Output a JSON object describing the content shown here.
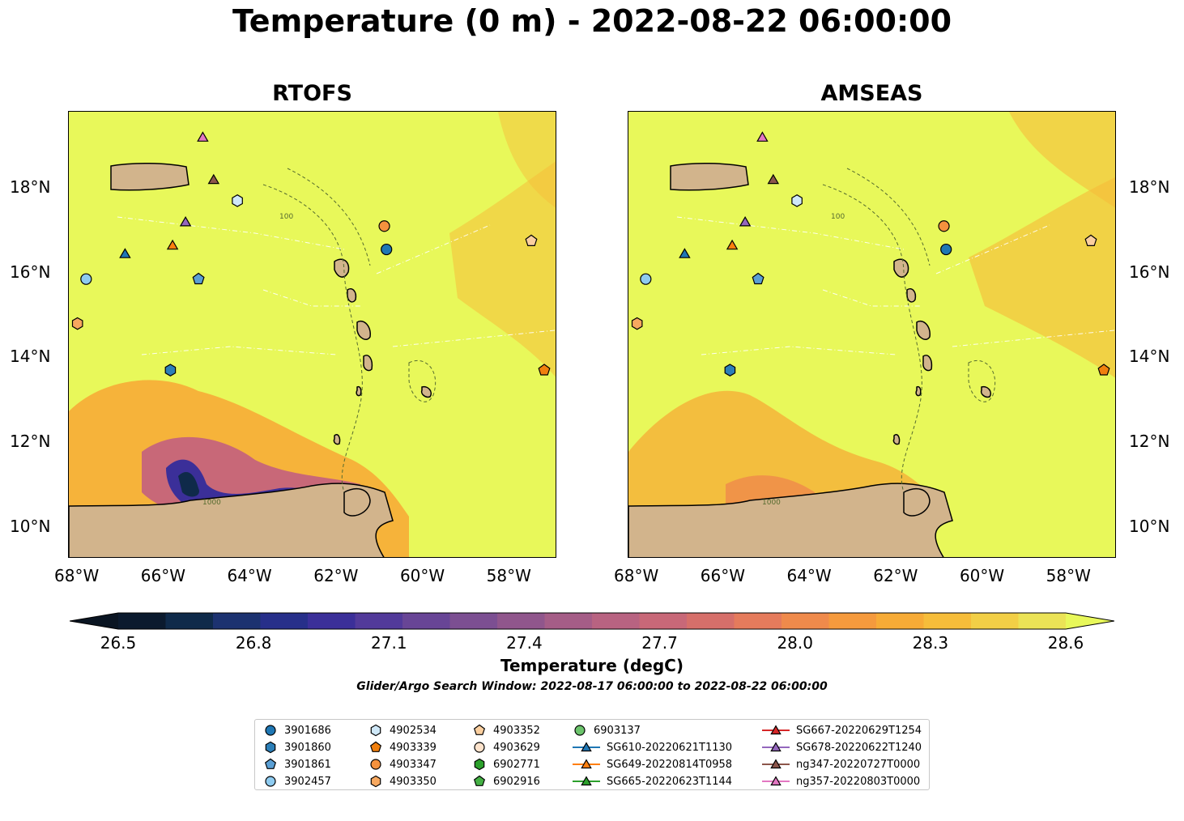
{
  "title": "Temperature (0 m) - 2022-08-22 06:00:00",
  "panels": [
    {
      "id": "rtofs",
      "title": "RTOFS"
    },
    {
      "id": "amseas",
      "title": "AMSEAS"
    }
  ],
  "axes": {
    "lon_ticks": [
      "68°W",
      "66°W",
      "64°W",
      "62°W",
      "60°W",
      "58°W"
    ],
    "lat_ticks": [
      "18°N",
      "16°N",
      "14°N",
      "12°N",
      "10°N"
    ],
    "lon_range": [
      -68.2,
      -56.9
    ],
    "lat_range": [
      9.25,
      19.8
    ]
  },
  "contour_labels": [
    "100",
    "1000"
  ],
  "colorbar": {
    "ticks": [
      "26.5",
      "26.8",
      "27.1",
      "27.4",
      "27.7",
      "28.0",
      "28.3",
      "28.6"
    ],
    "label": "Temperature (degC)",
    "colors": [
      "#0b1a2e",
      "#0f2a4a",
      "#1c3270",
      "#272f8a",
      "#3b2f99",
      "#523a9a",
      "#684596",
      "#7c4f92",
      "#90568c",
      "#a55d87",
      "#b86381",
      "#c86878",
      "#d66f6a",
      "#e57b5c",
      "#ef8a4b",
      "#f59a3d",
      "#f7ab36",
      "#f6bd3a",
      "#f2cf46",
      "#ebe356"
    ],
    "under_color": "#0a1522",
    "over_color": "#e8f85a"
  },
  "search_window": "Glider/Argo Search Window: 2022-08-17 06:00:00 to 2022-08-22 06:00:00",
  "land_color": "#d2b48c",
  "sea_background": "#e8f85a",
  "legend": [
    {
      "label": "3901686",
      "marker": "circle",
      "color": "#1f77b4"
    },
    {
      "label": "3901860",
      "marker": "hexagon",
      "color": "#2c7fb8"
    },
    {
      "label": "3901861",
      "marker": "pentagon",
      "color": "#5a9fd4"
    },
    {
      "label": "3902457",
      "marker": "circle",
      "color": "#8ecbf0"
    },
    {
      "label": "4902534",
      "marker": "hexagon",
      "color": "#cfe8f8"
    },
    {
      "label": "4903339",
      "marker": "pentagon",
      "color": "#f07f0e"
    },
    {
      "label": "4903347",
      "marker": "circle",
      "color": "#f5923e"
    },
    {
      "label": "4903350",
      "marker": "hexagon",
      "color": "#f7a85f"
    },
    {
      "label": "4903352",
      "marker": "pentagon",
      "color": "#fbcf9f"
    },
    {
      "label": "4903629",
      "marker": "circle",
      "color": "#fde3cc"
    },
    {
      "label": "6902771",
      "marker": "hexagon",
      "color": "#2ca02c"
    },
    {
      "label": "6902916",
      "marker": "pentagon",
      "color": "#44b044"
    },
    {
      "label": "6903137",
      "marker": "circle",
      "color": "#6cc46c"
    },
    {
      "label": "SG610-20220621T1130",
      "marker": "triangle",
      "color": "#1f77b4",
      "line": true
    },
    {
      "label": "SG649-20220814T0958",
      "marker": "triangle",
      "color": "#ff7f0e",
      "line": true
    },
    {
      "label": "SG665-20220623T1144",
      "marker": "triangle",
      "color": "#2ca02c",
      "line": true
    },
    {
      "label": "SG667-20220629T1254",
      "marker": "triangle",
      "color": "#d62728",
      "line": true
    },
    {
      "label": "SG678-20220622T1240",
      "marker": "triangle",
      "color": "#9467bd",
      "line": true
    },
    {
      "label": "ng347-20220727T0000",
      "marker": "triangle",
      "color": "#8c564b",
      "line": true
    },
    {
      "label": "ng357-20220803T0000",
      "marker": "triangle",
      "color": "#e377c2",
      "line": true
    }
  ],
  "observations": [
    {
      "label": "3901686",
      "lon": -60.85,
      "lat": 16.55
    },
    {
      "label": "3901860",
      "lon": -65.85,
      "lat": 13.7
    },
    {
      "label": "3901861",
      "lon": -65.2,
      "lat": 15.85
    },
    {
      "label": "3902457",
      "lon": -67.8,
      "lat": 15.85
    },
    {
      "label": "4902534",
      "lon": -64.3,
      "lat": 17.7
    },
    {
      "label": "4903339",
      "lon": -57.2,
      "lat": 13.7
    },
    {
      "label": "4903347",
      "lon": -60.9,
      "lat": 17.1
    },
    {
      "label": "4903350",
      "lon": -68.0,
      "lat": 14.8
    },
    {
      "label": "4903352",
      "lon": -57.5,
      "lat": 16.75
    },
    {
      "label": "SG610-20220621T1130",
      "lon": -66.9,
      "lat": 16.45
    },
    {
      "label": "SG649-20220814T0958",
      "lon": -65.8,
      "lat": 16.65
    },
    {
      "label": "SG678-20220622T1240",
      "lon": -65.5,
      "lat": 17.2
    },
    {
      "label": "ng347-20220727T0000",
      "lon": -64.85,
      "lat": 18.2
    },
    {
      "label": "ng357-20220803T0000",
      "lon": -65.1,
      "lat": 19.2
    }
  ]
}
